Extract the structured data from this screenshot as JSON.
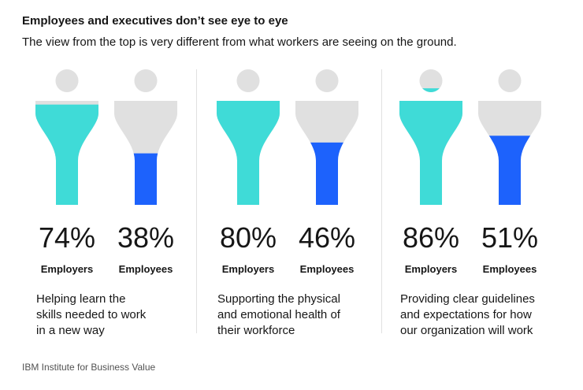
{
  "title": "Employees and executives don’t see eye to eye",
  "subtitle": "The view from the top is very different from what workers are seeing on the ground.",
  "source": "IBM Institute for Business Value",
  "colors": {
    "employers": "#3fdbd7",
    "employees": "#1d62fc",
    "empty": "#e0e0e0"
  },
  "chart_data": {
    "type": "bar",
    "categories": [
      "Helping learn the skills needed to work in a new way",
      "Supporting the physical and emotional health of their workforce",
      "Providing clear guidelines and expectations for how our organization will work"
    ],
    "series": [
      {
        "name": "Employers",
        "values": [
          74,
          80,
          86
        ]
      },
      {
        "name": "Employees",
        "values": [
          38,
          46,
          51
        ]
      }
    ],
    "groups": [
      {
        "description": [
          "Helping learn the",
          "skills needed to work",
          "in a new way"
        ],
        "employers": {
          "value": 74,
          "label": "74%",
          "role": "Employers"
        },
        "employees": {
          "value": 38,
          "label": "38%",
          "role": "Employees"
        }
      },
      {
        "description": [
          "Supporting the physical",
          "and emotional health of",
          "their workforce"
        ],
        "employers": {
          "value": 80,
          "label": "80%",
          "role": "Employers"
        },
        "employees": {
          "value": 46,
          "label": "46%",
          "role": "Employees"
        }
      },
      {
        "description": [
          "Providing clear guidelines",
          "and expectations for how",
          "our organization will work"
        ],
        "employers": {
          "value": 86,
          "label": "86%",
          "role": "Employers"
        },
        "employees": {
          "value": 51,
          "label": "51%",
          "role": "Employees"
        }
      }
    ],
    "ylim": [
      0,
      100
    ]
  }
}
